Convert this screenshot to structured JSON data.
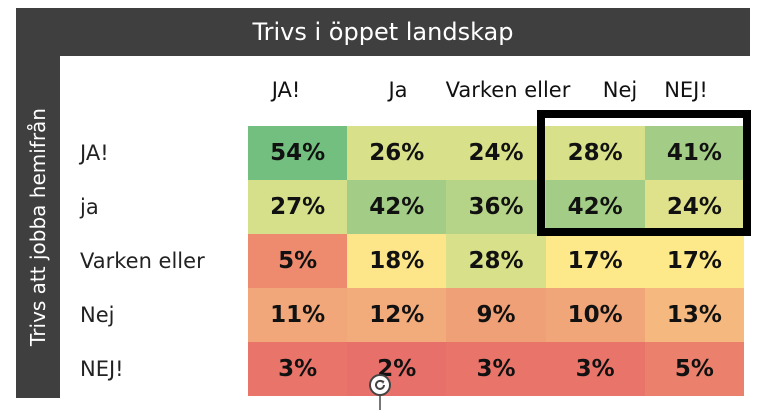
{
  "chart_data": {
    "type": "heatmap",
    "title": "Trivs i öppet landskap",
    "ylabel": "Trivs att jobba hemifrån",
    "columns": [
      "JA!",
      "Ja",
      "Varken eller",
      "Nej",
      "NEJ!"
    ],
    "rows": [
      "JA!",
      "ja",
      "Varken eller",
      "Nej",
      "NEJ!"
    ],
    "values": [
      [
        "54%",
        "26%",
        "24%",
        "28%",
        "41%"
      ],
      [
        "27%",
        "42%",
        "36%",
        "42%",
        "24%"
      ],
      [
        "5%",
        "18%",
        "28%",
        "17%",
        "17%"
      ],
      [
        "11%",
        "12%",
        "9%",
        "10%",
        "13%"
      ],
      [
        "3%",
        "2%",
        "3%",
        "3%",
        "5%"
      ]
    ],
    "colors": [
      [
        "#72bf7f",
        "#d8e08a",
        "#d8e08a",
        "#d8e08a",
        "#a3cd86"
      ],
      [
        "#d6df8a",
        "#a3cd86",
        "#b6d487",
        "#a3cd86",
        "#dfe28a"
      ],
      [
        "#ee8b6f",
        "#fde68a",
        "#d8e08a",
        "#fee98a",
        "#fee98a"
      ],
      [
        "#f1a77a",
        "#f2ac7b",
        "#efa076",
        "#f1a67a",
        "#f5b87f"
      ],
      [
        "#e9756a",
        "#e8706a",
        "#e9756a",
        "#e9756a",
        "#eb816d"
      ]
    ],
    "highlight": {
      "rows": [
        0,
        1
      ],
      "columns": [
        3,
        4
      ]
    }
  }
}
